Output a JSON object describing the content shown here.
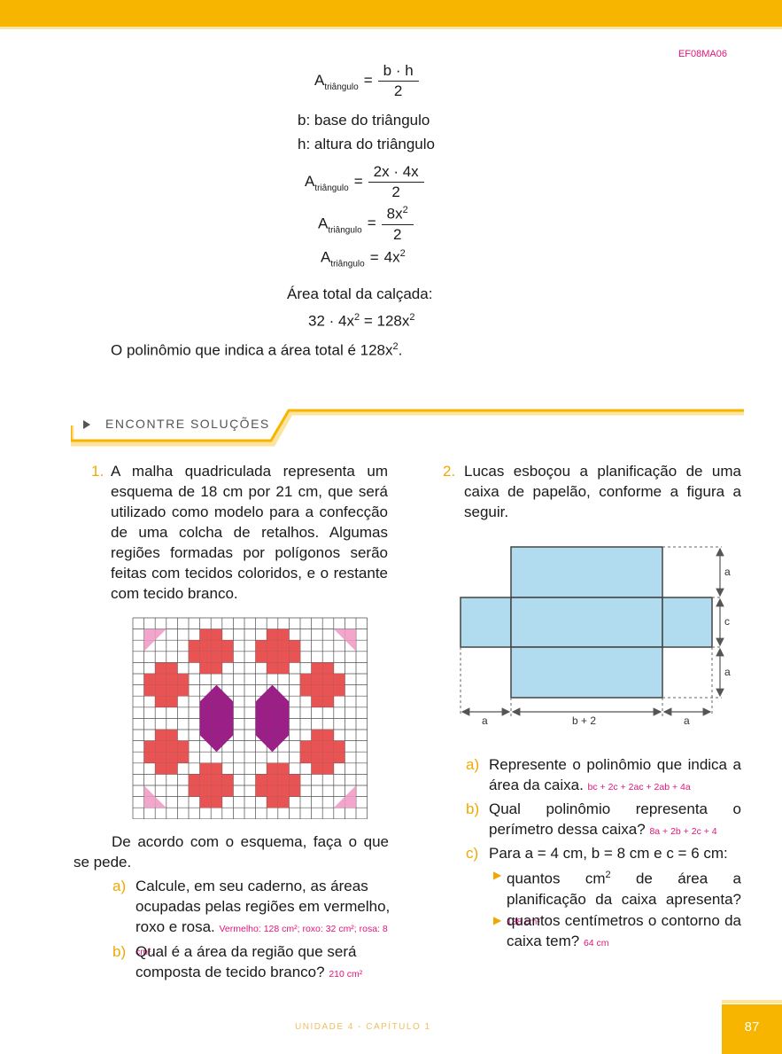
{
  "header": {
    "code": "EF08MA06"
  },
  "formulas": {
    "a_letter": "A",
    "a_sub": "triângulo",
    "eq": "=",
    "f1_num": "b · h",
    "f1_den": "2",
    "b_def": "b: base do triângulo",
    "h_def": "h: altura do triângulo",
    "f2_num": "2x · 4x",
    "f2_den": "2",
    "f3_num": "8x",
    "f3_num_sup": "2",
    "f3_den": "2",
    "f4_rhs": "4x",
    "f4_sup": "2",
    "total_label": "Área total da calçada:",
    "total_left": "32 · 4x",
    "total_sup1": "2",
    "total_eq": "=",
    "total_right": "128x",
    "total_sup2": "2",
    "conclusion": "O polinômio que indica a área total é 128x",
    "conclusion_sup": "2",
    "conclusion_end": "."
  },
  "section": {
    "title": "ENCONTRE SOLUÇÕES"
  },
  "q1": {
    "number": "1.",
    "text": "A malha quadriculada representa um esquema de 18 cm por 21 cm, que será utilizado como modelo para a confecção de uma colcha de retalhos. Algumas regiões formadas por polígonos serão feitas com tecidos coloridos, e o restante com tecido branco.",
    "intro": "De acordo com o esquema, faça o que se pede.",
    "a_letter": "a)",
    "a_text": "Calcule, em seu caderno, as áreas ocupadas pelas regiões em vermelho, roxo e rosa.",
    "a_answer": "Vermelho: 128 cm²; roxo: 32 cm²; rosa: 8 cm².",
    "b_letter": "b)",
    "b_text": "Qual é a área da região que será composta de tecido branco?",
    "b_answer": "210 cm²"
  },
  "q2": {
    "number": "2.",
    "text": "Lucas esboçou a planificação de uma caixa de papelão, conforme a figura a seguir.",
    "dims": {
      "a_top": "a",
      "c": "c",
      "a_bottom": "a",
      "a_left": "a",
      "b2": "b + 2",
      "a_right": "a"
    },
    "a_letter": "a)",
    "a_text": "Represente o polinômio que indica a área da caixa.",
    "a_answer": "bc + 2c + 2ac + 2ab + 4a",
    "b_letter": "b)",
    "b_text": "Qual polinômio representa o perímetro dessa caixa?",
    "b_answer": "8a + 2b + 2c + 4",
    "c_letter": "c)",
    "c_text": "Para a = 4 cm, b = 8 cm e c = 6 cm:",
    "c1_text_a": "quantos cm",
    "c1_sup": "2",
    "c1_text_b": " de área a planificação da caixa apresenta?",
    "c1_answer": "188 cm²",
    "c2_text": "quantos centímetros o contorno da caixa tem?",
    "c2_answer": "64 cm"
  },
  "footer": {
    "text": "UNIDADE 4 - CAPÍTULO 1",
    "page": "87"
  },
  "colors": {
    "accent": "#f7b500",
    "answer": "#e0157a",
    "red": "#e85454",
    "purple": "#9b1f87",
    "pink": "#f3a6cb",
    "box_fill": "#b1dcf0"
  }
}
